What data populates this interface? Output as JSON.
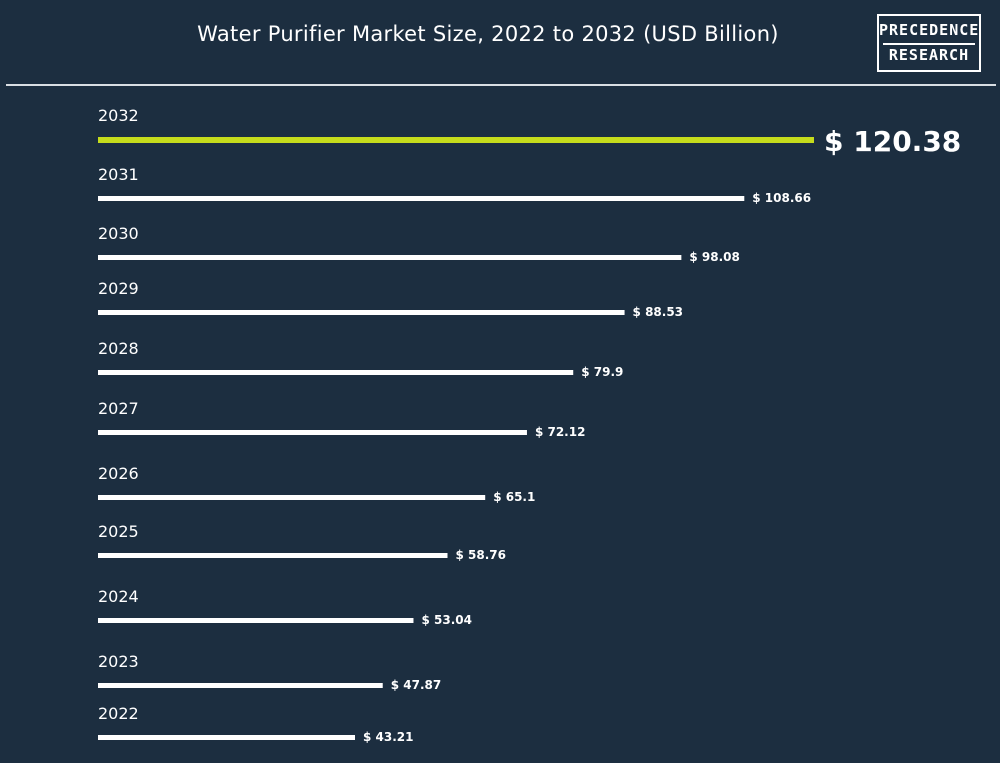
{
  "title": "Water Purifier Market Size, 2022 to 2032 (USD Billion)",
  "logo": {
    "line1": "PRECEDENCE",
    "line2": "RESEARCH"
  },
  "colors": {
    "background": "#1c2e40",
    "bar": "#ffffff",
    "highlight": "#c5dc1c"
  },
  "chart_data": {
    "type": "bar",
    "orientation": "horizontal",
    "title": "Water Purifier Market Size, 2022 to 2032 (USD Billion)",
    "xlabel": "",
    "ylabel": "",
    "categories": [
      "2032",
      "2031",
      "2030",
      "2029",
      "2028",
      "2027",
      "2026",
      "2025",
      "2024",
      "2023",
      "2022"
    ],
    "values": [
      120.38,
      108.66,
      98.08,
      88.53,
      79.9,
      72.12,
      65.1,
      58.76,
      53.04,
      47.87,
      43.21
    ],
    "value_labels": [
      "$ 120.38",
      "$ 108.66",
      "$ 98.08",
      "$ 88.53",
      "$ 79.9",
      "$ 72.12",
      "$ 65.1",
      "$ 58.76",
      "$ 53.04",
      "$ 47.87",
      "$ 43.21"
    ],
    "highlight_category": "2032",
    "xlim": [
      0,
      120.38
    ],
    "grid": false,
    "legend": "none"
  }
}
